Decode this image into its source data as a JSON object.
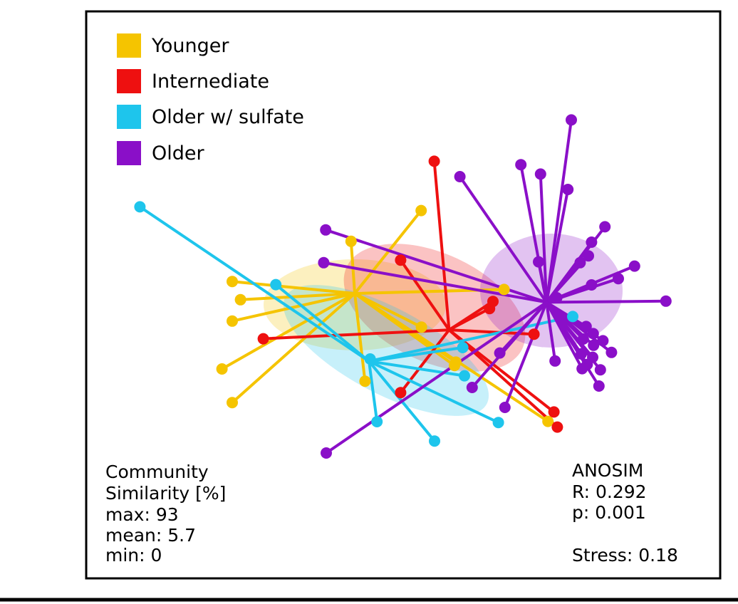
{
  "chart_data": {
    "type": "scatter",
    "subtype": "nmds-spider-ordination",
    "title": "",
    "xlabel": "",
    "ylabel": "",
    "xlim": [
      -1.0,
      1.0
    ],
    "ylim": [
      -1.0,
      1.0
    ],
    "grid": false,
    "legend_position": "top-left",
    "series": [
      {
        "name": "Younger",
        "color": "#F5C400",
        "centroid": [
          -0.17,
          0.1
        ],
        "ellipse": {
          "cx": -0.17,
          "cy": 0.06,
          "rx": 0.32,
          "ry": 0.16,
          "angle": 0
        },
        "points": [
          [
            0.063,
            0.391
          ],
          [
            -0.183,
            0.283
          ],
          [
            -0.6,
            0.142
          ],
          [
            -0.571,
            0.078
          ],
          [
            -0.6,
            0.003
          ],
          [
            -0.636,
            -0.165
          ],
          [
            -0.6,
            -0.283
          ],
          [
            -0.134,
            -0.208
          ],
          [
            0.18,
            -0.153
          ],
          [
            0.185,
            -0.141
          ],
          [
            0.354,
            0.114
          ],
          [
            0.508,
            -0.349
          ],
          [
            0.064,
            -0.018
          ]
        ]
      },
      {
        "name": "Internediate",
        "color": "#EE1010",
        "centroid": [
          0.161,
          -0.028
        ],
        "ellipse": {
          "cx": 0.11,
          "cy": 0.05,
          "rx": 0.34,
          "ry": 0.19,
          "angle": 25
        },
        "points": [
          [
            0.109,
            0.564
          ],
          [
            -0.009,
            0.217
          ],
          [
            -0.491,
            -0.059
          ],
          [
            -0.009,
            -0.248
          ],
          [
            0.303,
            0.047
          ],
          [
            0.315,
            0.072
          ],
          [
            0.459,
            -0.043
          ],
          [
            0.529,
            -0.316
          ],
          [
            0.541,
            -0.369
          ]
        ]
      },
      {
        "name": "Older w/ sulfate",
        "color": "#1EC5EC",
        "centroid": [
          -0.12,
          -0.138
        ],
        "ellipse": {
          "cx": -0.06,
          "cy": -0.1,
          "rx": 0.4,
          "ry": 0.15,
          "angle": 28
        },
        "points": [
          [
            -0.924,
            0.404
          ],
          [
            -0.447,
            0.131
          ],
          [
            -0.116,
            -0.13
          ],
          [
            0.209,
            -0.09
          ],
          [
            0.215,
            -0.189
          ],
          [
            0.334,
            -0.353
          ],
          [
            0.595,
            0.019
          ],
          [
            -0.092,
            -0.35
          ],
          [
            0.11,
            -0.418
          ]
        ]
      },
      {
        "name": "Older",
        "color": "#8A0FC8",
        "centroid": [
          0.503,
          0.069
        ],
        "ellipse": {
          "cx": 0.52,
          "cy": 0.11,
          "rx": 0.25,
          "ry": 0.2,
          "angle": 0
        },
        "points": [
          [
            0.59,
            0.709
          ],
          [
            0.413,
            0.552
          ],
          [
            0.482,
            0.519
          ],
          [
            0.578,
            0.465
          ],
          [
            0.199,
            0.51
          ],
          [
            -0.272,
            0.323
          ],
          [
            -0.279,
            0.208
          ],
          [
            0.708,
            0.334
          ],
          [
            0.661,
            0.28
          ],
          [
            0.65,
            0.232
          ],
          [
            0.621,
            0.208
          ],
          [
            0.475,
            0.211
          ],
          [
            0.812,
            0.196
          ],
          [
            0.755,
            0.152
          ],
          [
            0.661,
            0.13
          ],
          [
            0.922,
            0.073
          ],
          [
            0.539,
            0.085
          ],
          [
            0.642,
            -0.016
          ],
          [
            0.667,
            -0.041
          ],
          [
            0.632,
            -0.06
          ],
          [
            0.668,
            -0.082
          ],
          [
            0.701,
            -0.066
          ],
          [
            0.625,
            -0.112
          ],
          [
            0.665,
            -0.124
          ],
          [
            0.731,
            -0.107
          ],
          [
            0.646,
            -0.149
          ],
          [
            0.692,
            -0.168
          ],
          [
            0.628,
            -0.164
          ],
          [
            0.687,
            -0.225
          ],
          [
            0.533,
            -0.137
          ],
          [
            0.339,
            -0.109
          ],
          [
            0.242,
            -0.23
          ],
          [
            0.357,
            -0.3
          ],
          [
            -0.27,
            -0.46
          ]
        ]
      }
    ],
    "legend": [
      "Younger",
      "Internediate",
      "Older w/ sulfate",
      "Older"
    ],
    "annotations": {
      "similarity": {
        "title_line1": "Community",
        "title_line2": "Similarity [%]",
        "max": "max: 93",
        "mean": "mean: 5.7",
        "min": "min: 0"
      },
      "anosim": {
        "title": "ANOSIM",
        "r": "R: 0.292",
        "p": "p: 0.001",
        "stress": "Stress: 0.18"
      }
    }
  }
}
